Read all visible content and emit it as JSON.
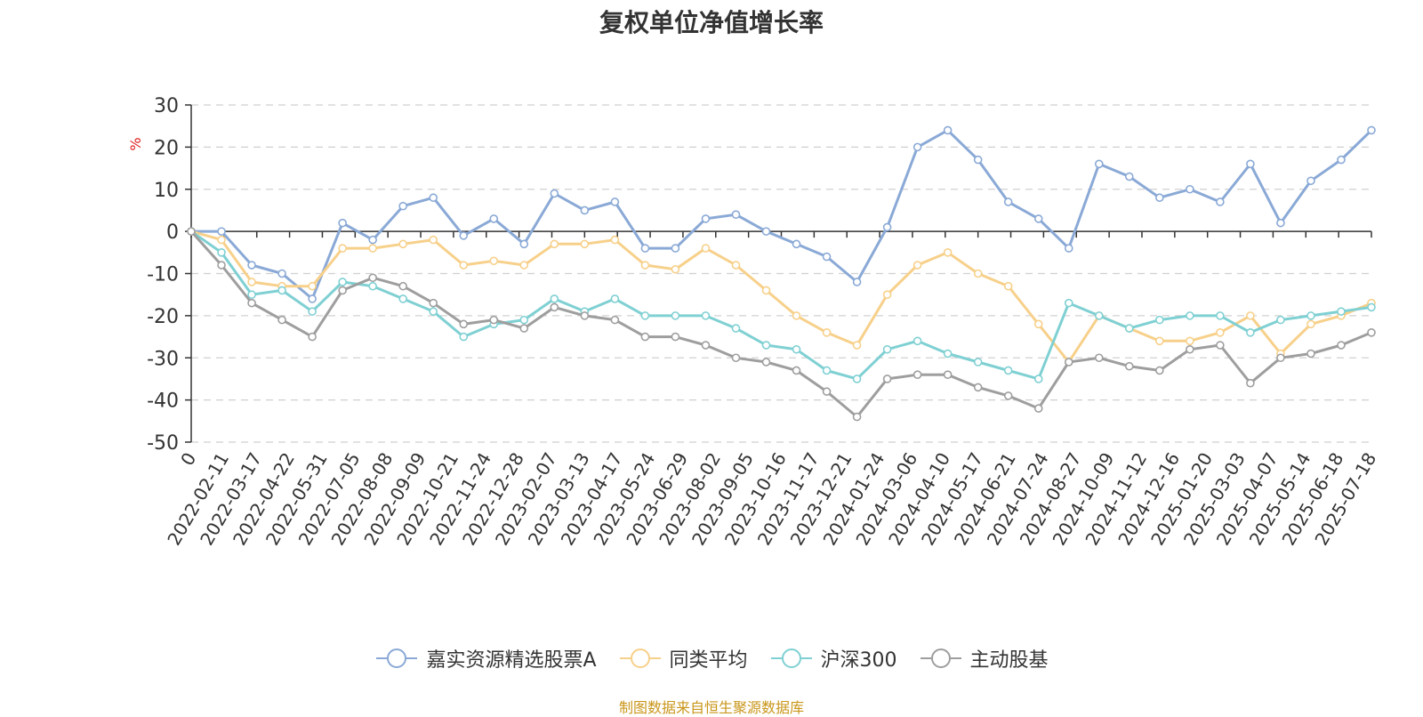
{
  "chart_data": {
    "type": "line",
    "title": "复权单位净值增长率",
    "ylabel": "%",
    "ylim": [
      -50,
      30
    ],
    "yticks": [
      30,
      20,
      10,
      0,
      -10,
      -20,
      -30,
      -40,
      -50
    ],
    "x_tick_labels": [
      "0",
      "2022-02-11",
      "2022-03-17",
      "2022-04-22",
      "2022-05-31",
      "2022-07-05",
      "2022-08-08",
      "2022-09-09",
      "2022-10-21",
      "2022-11-24",
      "2022-12-28",
      "2023-02-07",
      "2023-03-13",
      "2023-04-17",
      "2023-05-24",
      "2023-06-29",
      "2023-08-02",
      "2023-09-05",
      "2023-10-16",
      "2023-11-17",
      "2023-12-21",
      "2024-01-24",
      "2024-03-06",
      "2024-04-10",
      "2024-05-17",
      "2024-06-21",
      "2024-07-24",
      "2024-08-27",
      "2024-10-09",
      "2024-11-12",
      "2024-12-16",
      "2025-01-20",
      "2025-03-03",
      "2025-04-07",
      "2025-05-14",
      "2025-06-18",
      "2025-07-18"
    ],
    "grid": true,
    "legend_position": "bottom",
    "source_note": "制图数据来自恒生聚源数据库",
    "series": [
      {
        "name": "嘉实资源精选股票A",
        "color": "#8aa9d6",
        "values": [
          0,
          0,
          -8,
          -10,
          -16,
          2,
          -2,
          6,
          8,
          -1,
          3,
          -3,
          9,
          5,
          7,
          -4,
          -4,
          3,
          4,
          0,
          -3,
          -6,
          -12,
          1,
          20,
          24,
          17,
          7,
          3,
          -4,
          16,
          13,
          8,
          10,
          7,
          16,
          2,
          12,
          17,
          24
        ]
      },
      {
        "name": "同类平均",
        "color": "#f7d08a",
        "values": [
          0,
          -2,
          -12,
          -13,
          -13,
          -4,
          -4,
          -3,
          -2,
          -8,
          -7,
          -8,
          -3,
          -3,
          -2,
          -8,
          -9,
          -4,
          -8,
          -14,
          -20,
          -24,
          -27,
          -15,
          -8,
          -5,
          -10,
          -13,
          -22,
          -31,
          -20,
          -23,
          -26,
          -26,
          -24,
          -20,
          -29,
          -22,
          -20,
          -17
        ]
      },
      {
        "name": "沪深300",
        "color": "#7fd0d3",
        "values": [
          0,
          -5,
          -15,
          -14,
          -19,
          -12,
          -13,
          -16,
          -19,
          -25,
          -22,
          -21,
          -16,
          -19,
          -16,
          -20,
          -20,
          -20,
          -23,
          -27,
          -28,
          -33,
          -35,
          -28,
          -26,
          -29,
          -31,
          -33,
          -35,
          -17,
          -20,
          -23,
          -21,
          -20,
          -20,
          -24,
          -21,
          -20,
          -19,
          -18
        ]
      },
      {
        "name": "主动股基",
        "color": "#9e9e9e",
        "values": [
          0,
          -8,
          -17,
          -21,
          -25,
          -14,
          -11,
          -13,
          -17,
          -22,
          -21,
          -23,
          -18,
          -20,
          -21,
          -25,
          -25,
          -27,
          -30,
          -31,
          -33,
          -38,
          -44,
          -35,
          -34,
          -34,
          -37,
          -39,
          -42,
          -31,
          -30,
          -32,
          -33,
          -28,
          -27,
          -36,
          -30,
          -29,
          -27,
          -24
        ]
      }
    ]
  }
}
